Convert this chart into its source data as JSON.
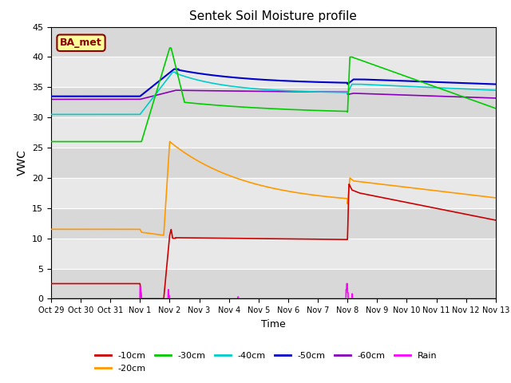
{
  "title": "Sentek Soil Moisture profile",
  "xlabel": "Time",
  "ylabel": "VWC",
  "annotation": "BA_met",
  "ylim": [
    0,
    45
  ],
  "yticks": [
    0,
    5,
    10,
    15,
    20,
    25,
    30,
    35,
    40,
    45
  ],
  "plot_bg_color": "#e8e8e8",
  "grid_color": "#ffffff",
  "colors": {
    "10cm": "#cc0000",
    "20cm": "#ff9900",
    "30cm": "#00cc00",
    "40cm": "#00cccc",
    "50cm": "#0000cc",
    "60cm": "#8800bb",
    "rain": "#ff00ff"
  },
  "tick_labels": [
    "Oct 29",
    "Oct 30",
    "Oct 31",
    "Nov 1",
    "Nov 2",
    "Nov 3",
    "Nov 4",
    "Nov 5",
    "Nov 6",
    "Nov 7",
    "Nov 8",
    "Nov 9",
    "Nov 10",
    "Nov 11",
    "Nov 12",
    "Nov 13"
  ]
}
